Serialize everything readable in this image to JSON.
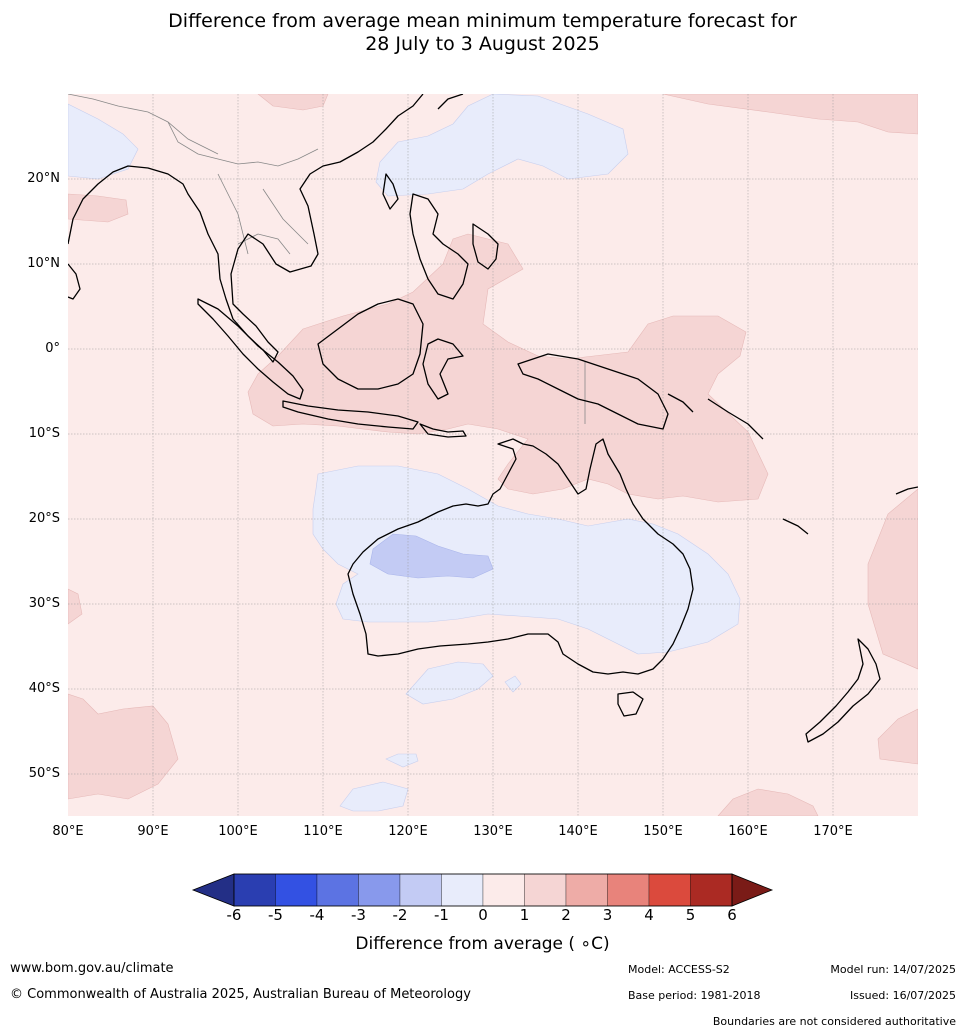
{
  "title": {
    "line1": "Difference from average mean minimum temperature forecast for",
    "line2": "28 July to 3 August 2025"
  },
  "map": {
    "lat_labels": [
      "20°N",
      "10°N",
      "0°",
      "10°S",
      "20°S",
      "30°S",
      "40°S",
      "50°S"
    ],
    "lon_labels": [
      "80°E",
      "90°E",
      "100°E",
      "110°E",
      "120°E",
      "130°E",
      "140°E",
      "150°E",
      "160°E",
      "170°E"
    ],
    "colors": {
      "ocean_default": "#fcebea",
      "warm_1_2": "#f5d5d4",
      "cool_-1_0": "#e8ecfb",
      "cool_-2_-1": "#c3cbf4",
      "coastline": "#000000",
      "borders": "#888888",
      "grid": "#9a9a9a"
    }
  },
  "colorbar": {
    "ticks": [
      "-6",
      "-5",
      "-4",
      "-3",
      "-2",
      "-1",
      "0",
      "1",
      "2",
      "3",
      "4",
      "5",
      "6"
    ],
    "colors": [
      "#232f86",
      "#2a3eb1",
      "#3351e3",
      "#5c73e3",
      "#8899ec",
      "#c3cbf4",
      "#e8ecfb",
      "#fcebea",
      "#f5d5d4",
      "#eeaca7",
      "#e8837b",
      "#db4a3d",
      "#ab2a23",
      "#7a1b17"
    ],
    "label": "Difference from average ( ∘C)"
  },
  "footer": {
    "website": "www.bom.gov.au/climate",
    "copyright": "© Commonwealth of Australia 2025, Australian Bureau of Meteorology",
    "model": "Model: ACCESS-S2",
    "base_period": "Base period: 1981-2018",
    "model_run": "Model run: 14/07/2025",
    "issued": "Issued: 16/07/2025",
    "disclaimer": "Boundaries are not considered authoritative"
  }
}
